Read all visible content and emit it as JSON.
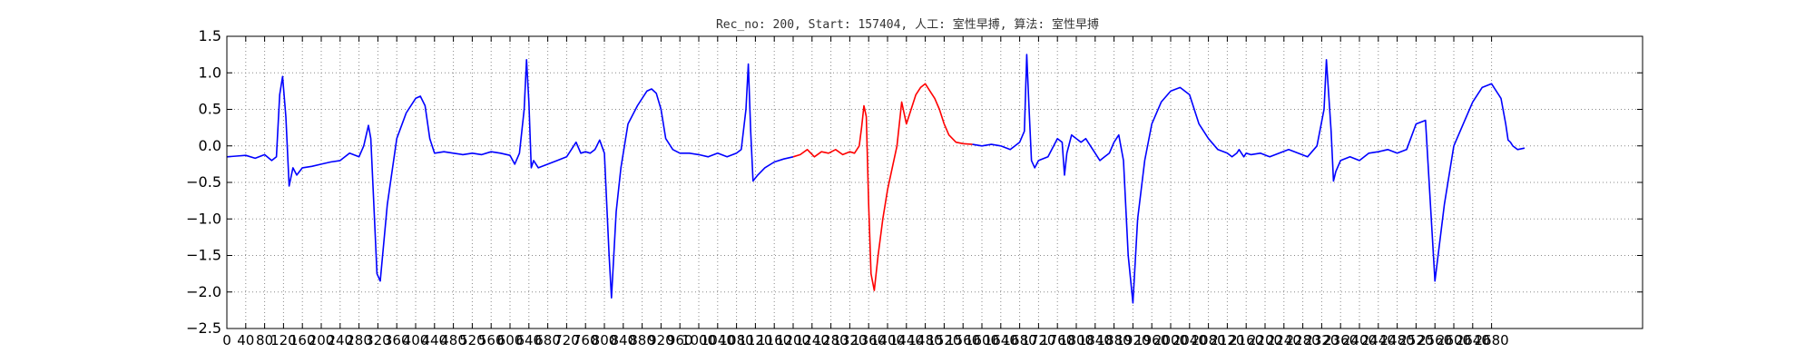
{
  "chart_data": {
    "type": "line",
    "title": "Rec_no: 200, Start: 157404, 人工: 室性早搏, 算法: 室性早搏",
    "xlabel": "",
    "ylabel": "",
    "xlim": [
      0,
      3000
    ],
    "ylim": [
      -2.5,
      1.5
    ],
    "x_tick_step": 40,
    "x_tick_max": 2680,
    "y_ticks": [
      -2.5,
      -2.0,
      -1.5,
      -1.0,
      -0.5,
      0.0,
      0.5,
      1.0,
      1.5
    ],
    "y_tick_labels": [
      "−2.5",
      "−2.0",
      "−1.5",
      "−1.0",
      "−0.5",
      "0.0",
      "0.5",
      "1.0",
      "1.5"
    ],
    "grid": true,
    "colors": {
      "normal": "#0000ff",
      "highlight": "#ff0000",
      "grid": "#888888",
      "axis": "#000000"
    },
    "series": [
      {
        "color": "#0000ff",
        "x": [
          0,
          20,
          40,
          60,
          80,
          95,
          105,
          112,
          118,
          125,
          132,
          140,
          148,
          160,
          180,
          200,
          220,
          240,
          260,
          280,
          290,
          300,
          305,
          310,
          318,
          325,
          340,
          360,
          380,
          400,
          410,
          420,
          430,
          440,
          460,
          480,
          500,
          520,
          540,
          560,
          580,
          600,
          610,
          620,
          630,
          635,
          640,
          645,
          650,
          660,
          680,
          700,
          720,
          730,
          740,
          750,
          760,
          770,
          780,
          790,
          800,
          810,
          815,
          825,
          835,
          850,
          870,
          890,
          900,
          910,
          920,
          930,
          945,
          960,
          980,
          1000,
          1020,
          1040,
          1060,
          1080,
          1090,
          1100,
          1105,
          1110,
          1115,
          1125,
          1140,
          1160,
          1180,
          1200
        ],
        "y": [
          -0.15,
          -0.14,
          -0.13,
          -0.17,
          -0.12,
          -0.2,
          -0.15,
          0.7,
          0.95,
          0.4,
          -0.55,
          -0.3,
          -0.4,
          -0.3,
          -0.28,
          -0.25,
          -0.22,
          -0.2,
          -0.1,
          -0.15,
          0.0,
          0.28,
          0.1,
          -0.6,
          -1.75,
          -1.85,
          -0.8,
          0.1,
          0.45,
          0.65,
          0.68,
          0.55,
          0.1,
          -0.1,
          -0.08,
          -0.1,
          -0.12,
          -0.1,
          -0.12,
          -0.08,
          -0.1,
          -0.13,
          -0.25,
          -0.1,
          0.5,
          1.18,
          0.6,
          -0.3,
          -0.2,
          -0.3,
          -0.25,
          -0.2,
          -0.15,
          -0.05,
          0.05,
          -0.1,
          -0.08,
          -0.1,
          -0.05,
          0.08,
          -0.1,
          -1.5,
          -2.08,
          -0.9,
          -0.3,
          0.3,
          0.55,
          0.75,
          0.78,
          0.72,
          0.5,
          0.1,
          -0.05,
          -0.1,
          -0.1,
          -0.12,
          -0.15,
          -0.1,
          -0.15,
          -0.1,
          -0.05,
          0.5,
          1.12,
          0.2,
          -0.48,
          -0.4,
          -0.3,
          -0.22,
          -0.18,
          -0.15
        ]
      },
      {
        "color": "#ff0000",
        "x": [
          1200,
          1215,
          1230,
          1245,
          1260,
          1275,
          1290,
          1305,
          1320,
          1330,
          1340,
          1345,
          1350,
          1355,
          1360,
          1365,
          1372,
          1380,
          1390,
          1400,
          1410,
          1420,
          1430,
          1440,
          1450,
          1460,
          1470,
          1480,
          1490,
          1500,
          1510,
          1520,
          1530,
          1545,
          1560,
          1580
        ],
        "y": [
          -0.15,
          -0.12,
          -0.05,
          -0.15,
          -0.08,
          -0.1,
          -0.05,
          -0.12,
          -0.08,
          -0.1,
          0.0,
          0.25,
          0.55,
          0.4,
          -0.8,
          -1.75,
          -1.98,
          -1.5,
          -1.0,
          -0.6,
          -0.3,
          0.0,
          0.6,
          0.3,
          0.5,
          0.7,
          0.8,
          0.85,
          0.75,
          0.65,
          0.5,
          0.3,
          0.15,
          0.05,
          0.03,
          0.02
        ]
      },
      {
        "color": "#0000ff",
        "x": [
          1580,
          1600,
          1620,
          1640,
          1660,
          1680,
          1690,
          1695,
          1700,
          1705,
          1712,
          1720,
          1740,
          1760,
          1770,
          1775,
          1780,
          1790,
          1800,
          1810,
          1820,
          1830,
          1840,
          1850,
          1860,
          1870,
          1880,
          1890,
          1900,
          1910,
          1920,
          1930,
          1945,
          1960,
          1980,
          2000,
          2020,
          2040,
          2060,
          2080,
          2100,
          2120,
          2130,
          2140,
          2145,
          2150,
          2155,
          2160,
          2170,
          2190,
          2210,
          2230,
          2250,
          2270,
          2290,
          2310,
          2325,
          2330,
          2340,
          2345,
          2350,
          2360,
          2380,
          2400,
          2420,
          2440,
          2460,
          2480,
          2500,
          2520,
          2540,
          2560,
          2580,
          2600,
          2620,
          2640,
          2660,
          2680,
          2700,
          2710,
          2715,
          2720,
          2725,
          2735,
          2750
        ],
        "y": [
          0.02,
          0.0,
          0.02,
          0.0,
          -0.05,
          0.05,
          0.2,
          1.25,
          0.5,
          -0.2,
          -0.3,
          -0.2,
          -0.15,
          0.1,
          0.05,
          -0.4,
          -0.1,
          0.15,
          0.1,
          0.05,
          0.1,
          0.0,
          -0.1,
          -0.2,
          -0.15,
          -0.1,
          0.05,
          0.15,
          -0.2,
          -1.5,
          -2.15,
          -1.0,
          -0.2,
          0.3,
          0.6,
          0.75,
          0.8,
          0.7,
          0.3,
          0.1,
          -0.05,
          -0.1,
          -0.15,
          -0.1,
          -0.05,
          -0.1,
          -0.15,
          -0.1,
          -0.12,
          -0.1,
          -0.15,
          -0.1,
          -0.05,
          -0.1,
          -0.15,
          0.0,
          0.5,
          1.18,
          0.2,
          -0.48,
          -0.35,
          -0.2,
          -0.15,
          -0.2,
          -0.1,
          -0.08,
          -0.05,
          -0.1,
          -0.05,
          0.3,
          0.35,
          -1.85,
          -0.8,
          0.0,
          0.3,
          0.6,
          0.8,
          0.85,
          0.65,
          0.3,
          0.08,
          0.05,
          0.0,
          -0.05,
          -0.03
        ]
      }
    ]
  }
}
